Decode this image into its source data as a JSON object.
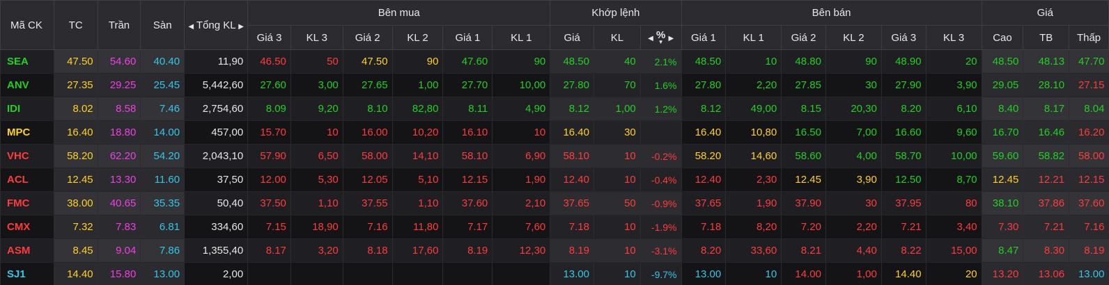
{
  "header": {
    "symbol": "Mã CK",
    "ref": "TC",
    "ceil": "Trần",
    "floor": "Sàn",
    "total_vol": "Tổng KL",
    "buy_group": "Bên mua",
    "match_group": "Khớp lệnh",
    "sell_group": "Bên bán",
    "price_group": "Giá",
    "bid3_p": "Giá 3",
    "bid3_v": "KL 3",
    "bid2_p": "Giá 2",
    "bid2_v": "KL 2",
    "bid1_p": "Giá 1",
    "bid1_v": "KL 1",
    "match_p": "Giá",
    "match_v": "KL",
    "match_pct": "%",
    "ask1_p": "Giá 1",
    "ask1_v": "KL 1",
    "ask2_p": "Giá 2",
    "ask2_v": "KL 2",
    "ask3_p": "Giá 3",
    "ask3_v": "KL 3",
    "high": "Cao",
    "avg": "TB",
    "low": "Thấp"
  },
  "colors": {
    "green": "#22d022",
    "red": "#ff3b3b",
    "yellow": "#ffd21f",
    "ceiling": "#f23fe6",
    "floor": "#31c8e8",
    "white": "#e6e6e6"
  },
  "rows": [
    {
      "sym": "SEA",
      "symc": "g",
      "tc": "47.50",
      "tran": "54.60",
      "san": "40.40",
      "vol": "11,90",
      "b3p": "46.50",
      "b3pc": "r",
      "b3v": "50",
      "b3vc": "r",
      "b2p": "47.50",
      "b2pc": "y",
      "b2v": "90",
      "b2vc": "y",
      "b1p": "47.60",
      "b1pc": "g",
      "b1v": "90",
      "b1vc": "g",
      "mp": "48.50",
      "mpc": "g",
      "mv": "40",
      "mvc": "g",
      "pct": "2.1%",
      "pctc": "g",
      "a1p": "48.50",
      "a1pc": "g",
      "a1v": "10",
      "a1vc": "g",
      "a2p": "48.80",
      "a2pc": "g",
      "a2v": "90",
      "a2vc": "g",
      "a3p": "48.90",
      "a3pc": "g",
      "a3v": "20",
      "a3vc": "g",
      "hi": "48.50",
      "hic": "g",
      "avg": "48.13",
      "avgc": "g",
      "lo": "47.70",
      "loc": "g"
    },
    {
      "sym": "ANV",
      "symc": "g",
      "tc": "27.35",
      "tran": "29.25",
      "san": "25.45",
      "vol": "5,442,60",
      "b3p": "27.60",
      "b3pc": "g",
      "b3v": "3,00",
      "b3vc": "g",
      "b2p": "27.65",
      "b2pc": "g",
      "b2v": "1,00",
      "b2vc": "g",
      "b1p": "27.70",
      "b1pc": "g",
      "b1v": "10,00",
      "b1vc": "g",
      "mp": "27.80",
      "mpc": "g",
      "mv": "70",
      "mvc": "g",
      "pct": "1.6%",
      "pctc": "g",
      "a1p": "27.80",
      "a1pc": "g",
      "a1v": "2,20",
      "a1vc": "g",
      "a2p": "27.85",
      "a2pc": "g",
      "a2v": "30",
      "a2vc": "g",
      "a3p": "27.90",
      "a3pc": "g",
      "a3v": "3,90",
      "a3vc": "g",
      "hi": "29.05",
      "hic": "g",
      "avg": "28.10",
      "avgc": "g",
      "lo": "27.15",
      "loc": "r"
    },
    {
      "sym": "IDI",
      "symc": "g",
      "tc": "8.02",
      "tran": "8.58",
      "san": "7.46",
      "vol": "2,754,60",
      "b3p": "8.09",
      "b3pc": "g",
      "b3v": "9,20",
      "b3vc": "g",
      "b2p": "8.10",
      "b2pc": "g",
      "b2v": "82,80",
      "b2vc": "g",
      "b1p": "8.11",
      "b1pc": "g",
      "b1v": "4,90",
      "b1vc": "g",
      "mp": "8.12",
      "mpc": "g",
      "mv": "1,00",
      "mvc": "g",
      "pct": "1.2%",
      "pctc": "g",
      "a1p": "8.12",
      "a1pc": "g",
      "a1v": "49,00",
      "a1vc": "g",
      "a2p": "8.15",
      "a2pc": "g",
      "a2v": "20,30",
      "a2vc": "g",
      "a3p": "8.20",
      "a3pc": "g",
      "a3v": "6,10",
      "a3vc": "g",
      "hi": "8.40",
      "hic": "g",
      "avg": "8.17",
      "avgc": "g",
      "lo": "8.04",
      "loc": "g"
    },
    {
      "sym": "MPC",
      "symc": "y",
      "tc": "16.40",
      "tran": "18.80",
      "san": "14.00",
      "vol": "457,00",
      "b3p": "15.70",
      "b3pc": "r",
      "b3v": "10",
      "b3vc": "r",
      "b2p": "16.00",
      "b2pc": "r",
      "b2v": "10,20",
      "b2vc": "r",
      "b1p": "16.10",
      "b1pc": "r",
      "b1v": "10",
      "b1vc": "r",
      "mp": "16.40",
      "mpc": "y",
      "mv": "30",
      "mvc": "y",
      "pct": "",
      "pctc": "y",
      "a1p": "16.40",
      "a1pc": "y",
      "a1v": "10,80",
      "a1vc": "y",
      "a2p": "16.50",
      "a2pc": "g",
      "a2v": "7,00",
      "a2vc": "g",
      "a3p": "16.60",
      "a3pc": "g",
      "a3v": "9,60",
      "a3vc": "g",
      "hi": "16.70",
      "hic": "g",
      "avg": "16.46",
      "avgc": "g",
      "lo": "16.20",
      "loc": "r"
    },
    {
      "sym": "VHC",
      "symc": "r",
      "tc": "58.20",
      "tran": "62.20",
      "san": "54.20",
      "vol": "2,043,10",
      "b3p": "57.90",
      "b3pc": "r",
      "b3v": "6,50",
      "b3vc": "r",
      "b2p": "58.00",
      "b2pc": "r",
      "b2v": "14,10",
      "b2vc": "r",
      "b1p": "58.10",
      "b1pc": "r",
      "b1v": "6,90",
      "b1vc": "r",
      "mp": "58.10",
      "mpc": "r",
      "mv": "10",
      "mvc": "r",
      "pct": "-0.2%",
      "pctc": "r",
      "a1p": "58.20",
      "a1pc": "y",
      "a1v": "14,60",
      "a1vc": "y",
      "a2p": "58.60",
      "a2pc": "g",
      "a2v": "4,00",
      "a2vc": "g",
      "a3p": "58.70",
      "a3pc": "g",
      "a3v": "10,00",
      "a3vc": "g",
      "hi": "59.60",
      "hic": "g",
      "avg": "58.82",
      "avgc": "g",
      "lo": "58.00",
      "loc": "r"
    },
    {
      "sym": "ACL",
      "symc": "r",
      "tc": "12.45",
      "tran": "13.30",
      "san": "11.60",
      "vol": "37,50",
      "b3p": "12.00",
      "b3pc": "r",
      "b3v": "5,30",
      "b3vc": "r",
      "b2p": "12.05",
      "b2pc": "r",
      "b2v": "5,10",
      "b2vc": "r",
      "b1p": "12.15",
      "b1pc": "r",
      "b1v": "1,90",
      "b1vc": "r",
      "mp": "12.40",
      "mpc": "r",
      "mv": "10",
      "mvc": "r",
      "pct": "-0.4%",
      "pctc": "r",
      "a1p": "12.40",
      "a1pc": "r",
      "a1v": "2,30",
      "a1vc": "r",
      "a2p": "12.45",
      "a2pc": "y",
      "a2v": "3,90",
      "a2vc": "y",
      "a3p": "12.50",
      "a3pc": "g",
      "a3v": "8,70",
      "a3vc": "g",
      "hi": "12.45",
      "hic": "y",
      "avg": "12.21",
      "avgc": "r",
      "lo": "12.15",
      "loc": "r"
    },
    {
      "sym": "FMC",
      "symc": "r",
      "tc": "38.00",
      "tran": "40.65",
      "san": "35.35",
      "vol": "50,40",
      "b3p": "37.50",
      "b3pc": "r",
      "b3v": "1,10",
      "b3vc": "r",
      "b2p": "37.55",
      "b2pc": "r",
      "b2v": "1,10",
      "b2vc": "r",
      "b1p": "37.60",
      "b1pc": "r",
      "b1v": "2,10",
      "b1vc": "r",
      "mp": "37.65",
      "mpc": "r",
      "mv": "50",
      "mvc": "r",
      "pct": "-0.9%",
      "pctc": "r",
      "a1p": "37.65",
      "a1pc": "r",
      "a1v": "1,90",
      "a1vc": "r",
      "a2p": "37.90",
      "a2pc": "r",
      "a2v": "30",
      "a2vc": "r",
      "a3p": "37.95",
      "a3pc": "r",
      "a3v": "80",
      "a3vc": "r",
      "hi": "38.10",
      "hic": "g",
      "avg": "37.86",
      "avgc": "r",
      "lo": "37.60",
      "loc": "r"
    },
    {
      "sym": "CMX",
      "symc": "r",
      "tc": "7.32",
      "tran": "7.83",
      "san": "6.81",
      "vol": "334,60",
      "b3p": "7.15",
      "b3pc": "r",
      "b3v": "18,90",
      "b3vc": "r",
      "b2p": "7.16",
      "b2pc": "r",
      "b2v": "11,80",
      "b2vc": "r",
      "b1p": "7.17",
      "b1pc": "r",
      "b1v": "7,60",
      "b1vc": "r",
      "mp": "7.18",
      "mpc": "r",
      "mv": "10",
      "mvc": "r",
      "pct": "-1.9%",
      "pctc": "r",
      "a1p": "7.18",
      "a1pc": "r",
      "a1v": "8,20",
      "a1vc": "r",
      "a2p": "7.20",
      "a2pc": "r",
      "a2v": "2,20",
      "a2vc": "r",
      "a3p": "7.21",
      "a3pc": "r",
      "a3v": "3,40",
      "a3vc": "r",
      "hi": "7.30",
      "hic": "r",
      "avg": "7.21",
      "avgc": "r",
      "lo": "7.16",
      "loc": "r"
    },
    {
      "sym": "ASM",
      "symc": "r",
      "tc": "8.45",
      "tran": "9.04",
      "san": "7.86",
      "vol": "1,355,40",
      "b3p": "8.17",
      "b3pc": "r",
      "b3v": "3,20",
      "b3vc": "r",
      "b2p": "8.18",
      "b2pc": "r",
      "b2v": "17,60",
      "b2vc": "r",
      "b1p": "8.19",
      "b1pc": "r",
      "b1v": "12,30",
      "b1vc": "r",
      "mp": "8.19",
      "mpc": "r",
      "mv": "10",
      "mvc": "r",
      "pct": "-3.1%",
      "pctc": "r",
      "a1p": "8.20",
      "a1pc": "r",
      "a1v": "33,60",
      "a1vc": "r",
      "a2p": "8.21",
      "a2pc": "r",
      "a2v": "4,40",
      "a2vc": "r",
      "a3p": "8.22",
      "a3pc": "r",
      "a3v": "15,00",
      "a3vc": "r",
      "hi": "8.47",
      "hic": "g",
      "avg": "8.30",
      "avgc": "r",
      "lo": "8.19",
      "loc": "r"
    },
    {
      "sym": "SJ1",
      "symc": "f",
      "tc": "14.40",
      "tran": "15.80",
      "san": "13.00",
      "vol": "2,00",
      "b3p": "",
      "b3pc": "w",
      "b3v": "",
      "b3vc": "w",
      "b2p": "",
      "b2pc": "w",
      "b2v": "",
      "b2vc": "w",
      "b1p": "",
      "b1pc": "w",
      "b1v": "",
      "b1vc": "w",
      "mp": "13.00",
      "mpc": "f",
      "mv": "10",
      "mvc": "f",
      "pct": "-9.7%",
      "pctc": "f",
      "a1p": "13.00",
      "a1pc": "f",
      "a1v": "10",
      "a1vc": "f",
      "a2p": "14.00",
      "a2pc": "r",
      "a2v": "1,00",
      "a2vc": "r",
      "a3p": "14.40",
      "a3pc": "y",
      "a3v": "20",
      "a3vc": "y",
      "hi": "13.20",
      "hic": "r",
      "avg": "13.06",
      "avgc": "r",
      "lo": "13.00",
      "loc": "f"
    }
  ]
}
